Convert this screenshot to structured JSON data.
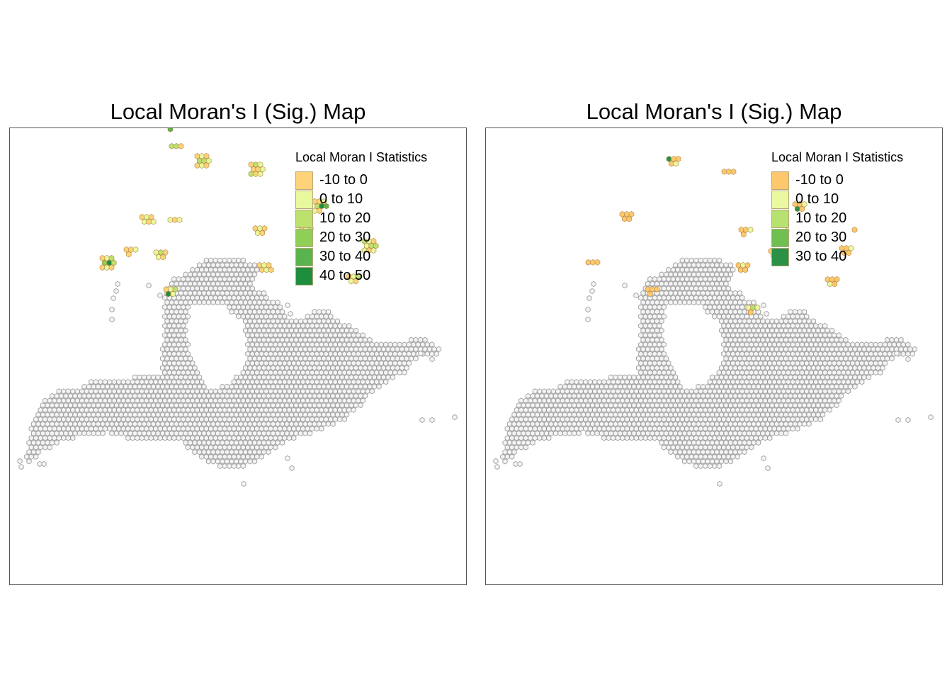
{
  "panels": [
    {
      "title": "Local Moran's I (Sig.) Map",
      "legend": {
        "title": "Local Moran I Statistics",
        "items": [
          {
            "label": "-10 to 0",
            "color": "#fdd278"
          },
          {
            "label": "0 to 10",
            "color": "#e8f89c"
          },
          {
            "label": "10 to 20",
            "color": "#bde16e"
          },
          {
            "label": "20 to 30",
            "color": "#90cf57"
          },
          {
            "label": "30 to 40",
            "color": "#5bb34f"
          },
          {
            "label": "40 to 50",
            "color": "#1f8d3e"
          }
        ]
      }
    },
    {
      "title": "Local Moran's I (Sig.) Map",
      "legend": {
        "title": "Local Moran I Statistics",
        "items": [
          {
            "label": "-10 to 0",
            "color": "#fdc86d"
          },
          {
            "label": "0 to 10",
            "color": "#eaf9a0"
          },
          {
            "label": "10 to 20",
            "color": "#b8e270"
          },
          {
            "label": "20 to 30",
            "color": "#6fbf52"
          },
          {
            "label": "30 to 40",
            "color": "#2a9147"
          }
        ]
      }
    }
  ],
  "colors": {
    "not_significant_fill": "#f4f4f4",
    "not_significant_stroke": "#9e9e9e",
    "frame": "#555555"
  }
}
